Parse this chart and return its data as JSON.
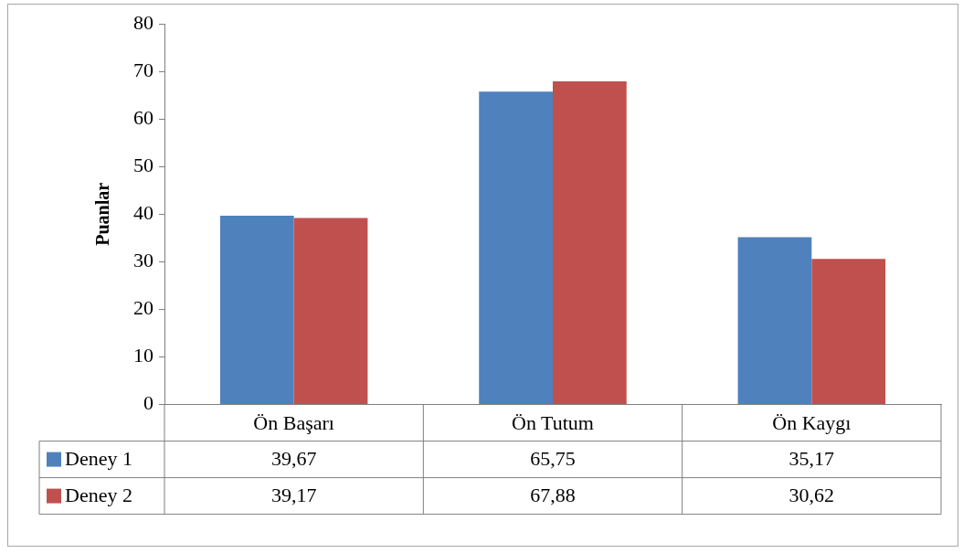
{
  "chart_data": {
    "type": "bar",
    "ylabel": "Puanlar",
    "categories": [
      "Ön Başarı",
      "Ön Tutum",
      "Ön Kaygı"
    ],
    "series": [
      {
        "name": "Deney 1",
        "color": "#4f81bd",
        "values": [
          39.67,
          65.75,
          35.17
        ],
        "value_labels": [
          "39,67",
          "65,75",
          "35,17"
        ]
      },
      {
        "name": "Deney 2",
        "color": "#c0504d",
        "values": [
          39.17,
          67.88,
          30.62
        ],
        "value_labels": [
          "39,17",
          "67,88",
          "30,62"
        ]
      }
    ],
    "ylim": [
      0,
      80
    ],
    "yticks": [
      0,
      10,
      20,
      30,
      40,
      50,
      60,
      70,
      80
    ],
    "grid": false,
    "legend": "bottom"
  }
}
